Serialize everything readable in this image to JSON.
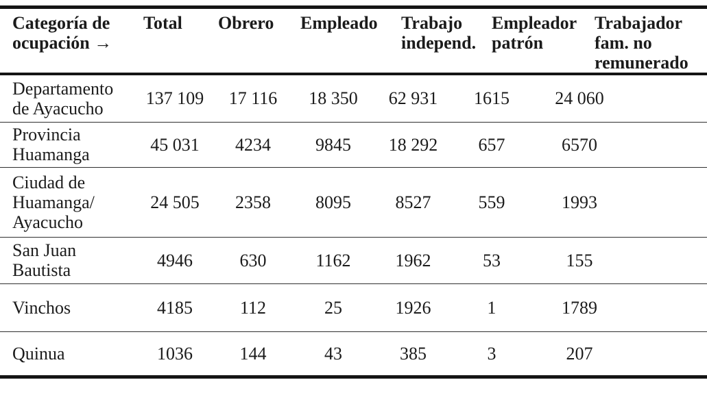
{
  "colors": {
    "text": "#1b1b1b",
    "rule_heavy": "#151515",
    "rule_light": "#2e2e2e",
    "background": "#ffffff"
  },
  "table": {
    "header": [
      "Categoría de\nocupación →",
      "Total",
      "Obrero",
      "Empleado",
      "Trabajo\nindepend.",
      "Empleador\npatrón",
      "Trabajador\nfam. no\nremunerado"
    ],
    "rows": [
      {
        "label": "Departamento\nde Ayacucho",
        "values": [
          "137 109",
          "17 116",
          "18 350",
          "62 931",
          "1615",
          "24 060"
        ]
      },
      {
        "label": "Provincia\nHuamanga",
        "values": [
          "45 031",
          "4234",
          "9845",
          "18 292",
          "657",
          "6570"
        ]
      },
      {
        "label": "Ciudad de\nHuamanga/\nAyacucho",
        "values": [
          "24 505",
          "2358",
          "8095",
          "8527",
          "559",
          "1993"
        ]
      },
      {
        "label": "San Juan\nBautista",
        "values": [
          "4946",
          "630",
          "1162",
          "1962",
          "53",
          "155"
        ]
      },
      {
        "label": "Vinchos",
        "values": [
          "4185",
          "112",
          "25",
          "1926",
          "1",
          "1789"
        ]
      },
      {
        "label": "Quinua",
        "values": [
          "1036",
          "144",
          "43",
          "385",
          "3",
          "207"
        ]
      }
    ]
  }
}
